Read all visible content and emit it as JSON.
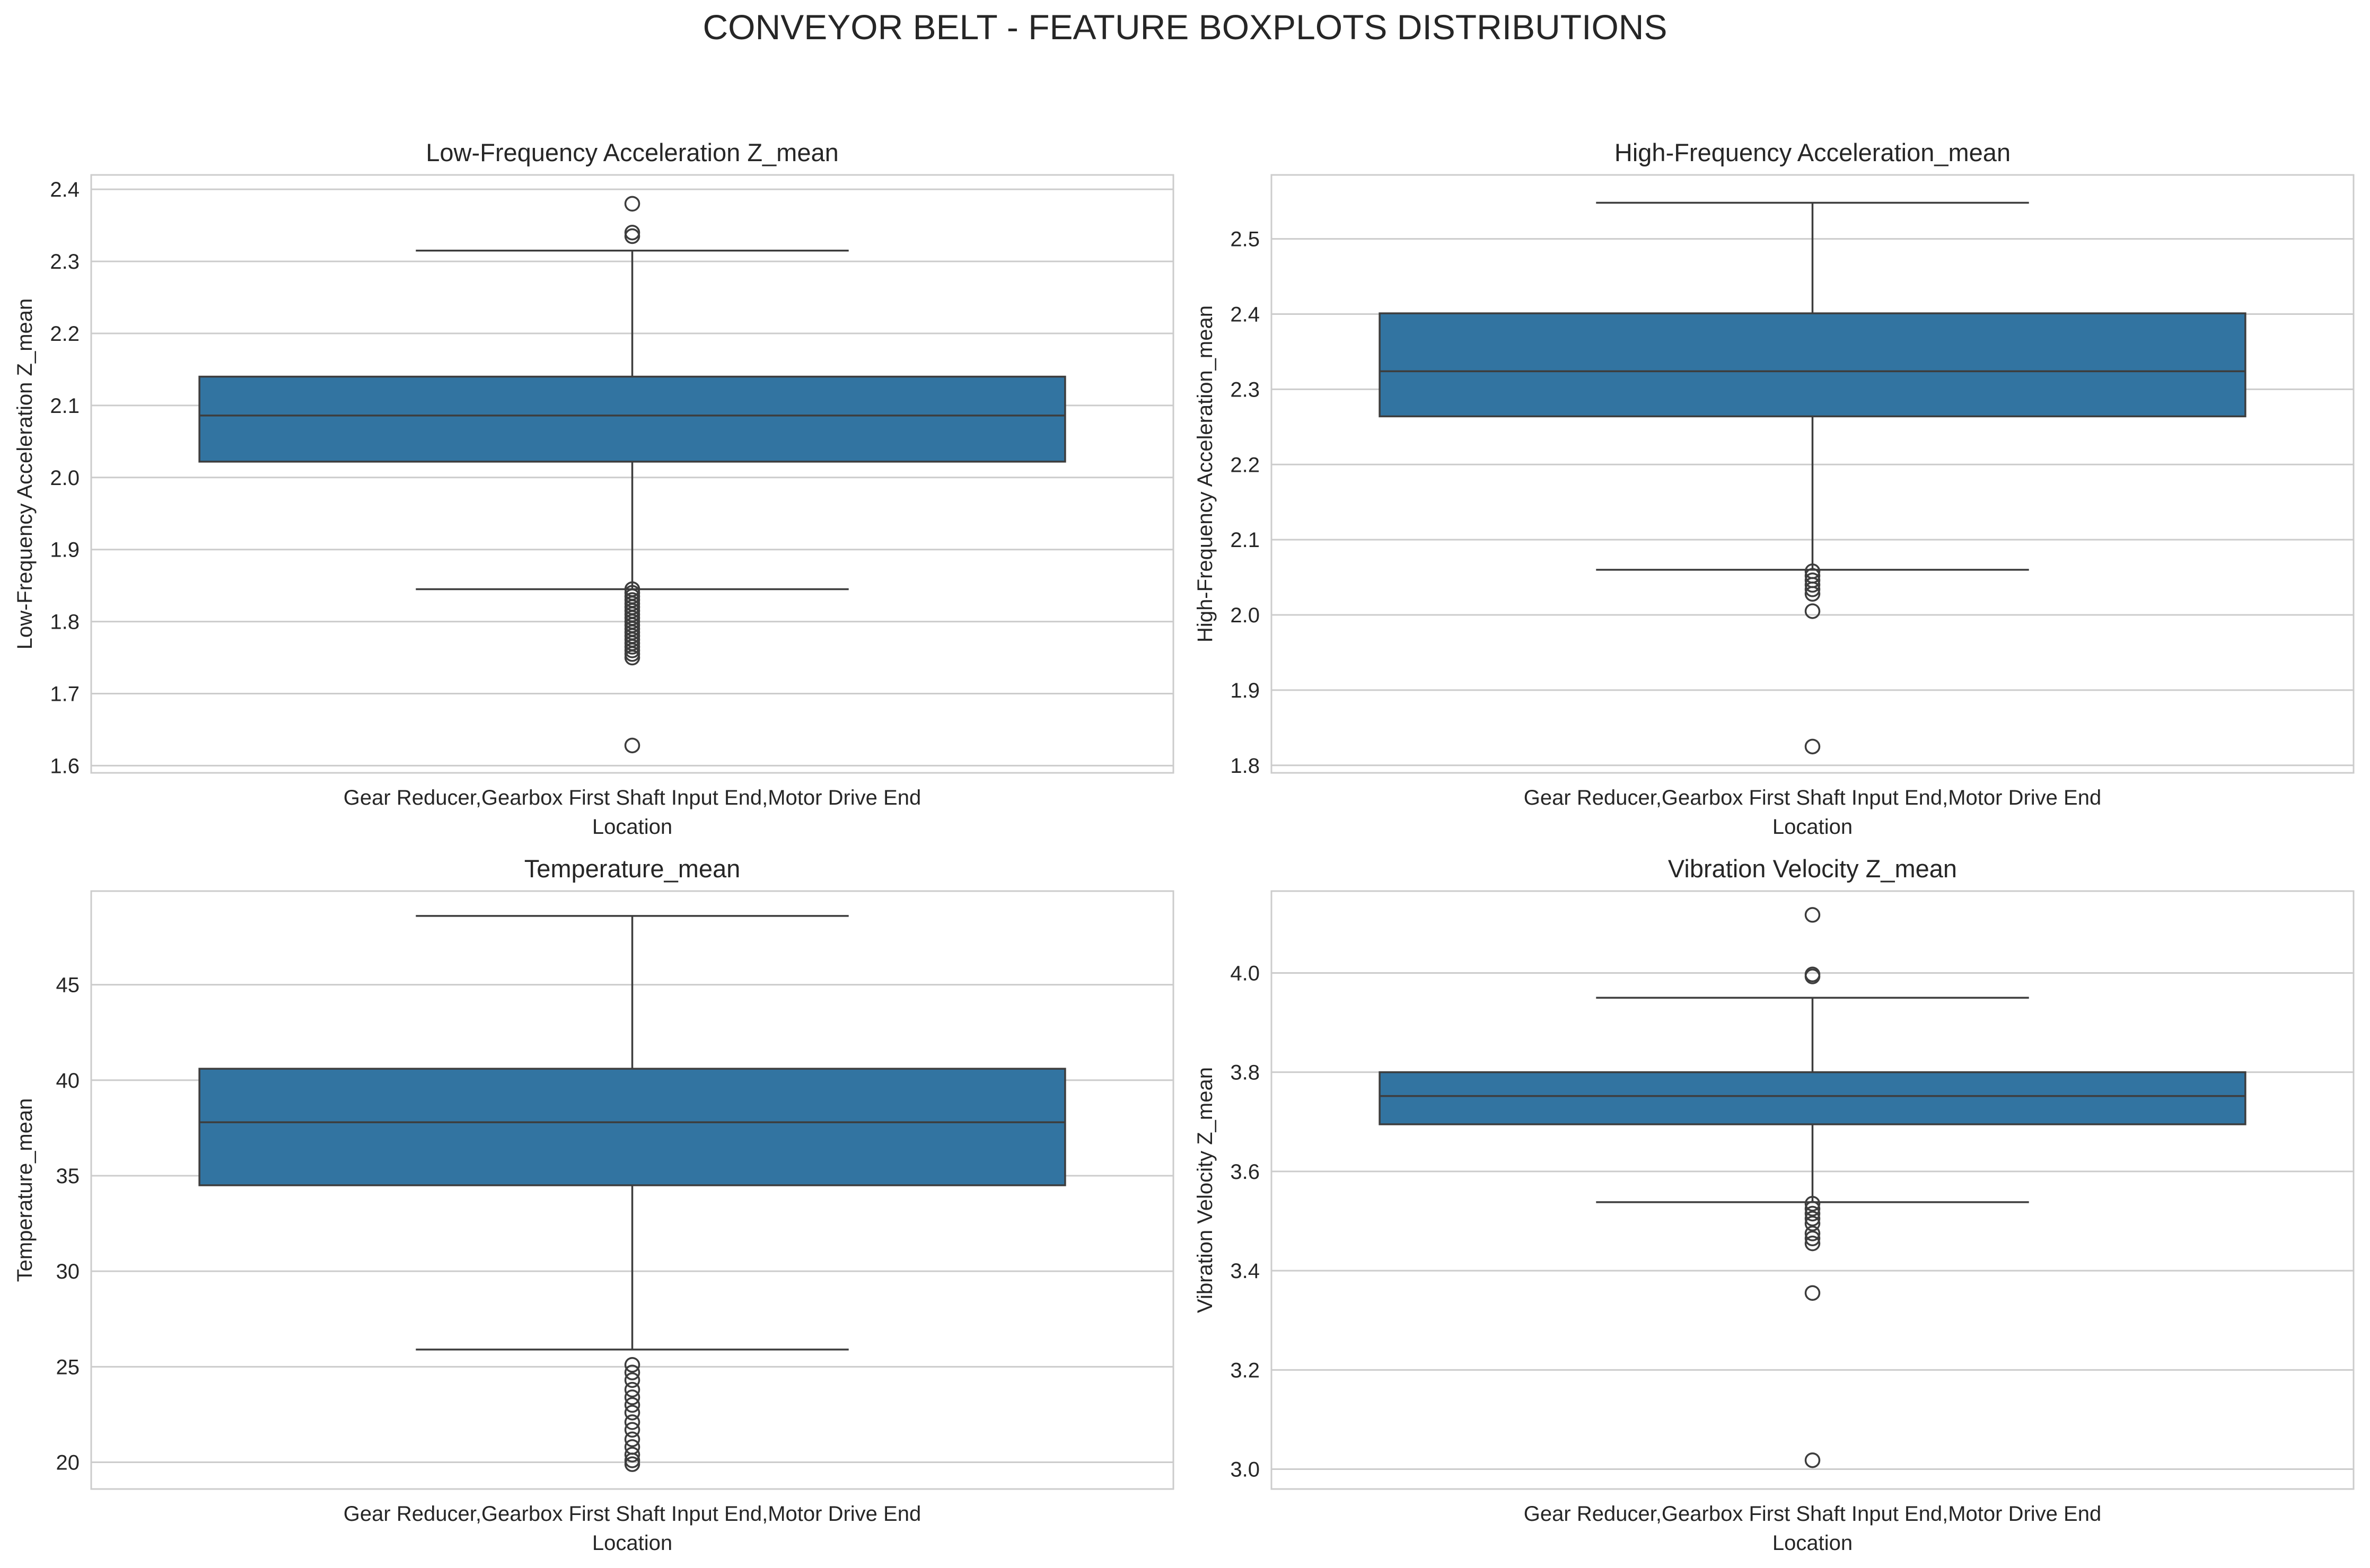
{
  "figure": {
    "suptitle": "CONVEYOR BELT - FEATURE BOXPLOTS DISTRIBUTIONS"
  },
  "colors": {
    "box_fill": "#3274a1",
    "line": "#3d3d3d",
    "grid": "#cccccc",
    "spine": "#cccccc",
    "text": "#262626"
  },
  "chart_data": [
    {
      "type": "boxplot",
      "title": "Low-Frequency Acceleration Z_mean",
      "xlabel": "Location",
      "ylabel": "Low-Frequency Acceleration Z_mean",
      "categories": [
        "Gear Reducer,Gearbox First Shaft Input End,Motor Drive End"
      ],
      "ylim": [
        1.59,
        2.42
      ],
      "yticks": [
        1.6,
        1.7,
        1.8,
        1.9,
        2.0,
        2.1,
        2.2,
        2.3,
        2.4
      ],
      "ytick_labels": [
        "1.6",
        "1.7",
        "1.8",
        "1.9",
        "2.0",
        "2.1",
        "2.2",
        "2.3",
        "2.4"
      ],
      "grid": "y",
      "box": {
        "whisker_low": 1.845,
        "q1": 2.022,
        "median": 2.086,
        "q3": 2.14,
        "whisker_high": 2.315
      },
      "outliers": [
        2.38,
        2.34,
        2.335,
        1.845,
        1.84,
        1.835,
        1.83,
        1.825,
        1.82,
        1.815,
        1.81,
        1.805,
        1.8,
        1.795,
        1.79,
        1.785,
        1.78,
        1.775,
        1.77,
        1.765,
        1.76,
        1.755,
        1.75,
        1.628
      ]
    },
    {
      "type": "boxplot",
      "title": "High-Frequency Acceleration_mean",
      "xlabel": "Location",
      "ylabel": "High-Frequency Acceleration_mean",
      "categories": [
        "Gear Reducer,Gearbox First Shaft Input End,Motor Drive End"
      ],
      "ylim": [
        1.79,
        2.585
      ],
      "yticks": [
        1.8,
        1.9,
        2.0,
        2.1,
        2.2,
        2.3,
        2.4,
        2.5
      ],
      "ytick_labels": [
        "1.8",
        "1.9",
        "2.0",
        "2.1",
        "2.2",
        "2.3",
        "2.4",
        "2.5"
      ],
      "grid": "y",
      "box": {
        "whisker_low": 2.06,
        "q1": 2.264,
        "median": 2.324,
        "q3": 2.401,
        "whisker_high": 2.548
      },
      "outliers": [
        2.058,
        2.052,
        2.046,
        2.04,
        2.034,
        2.028,
        2.005,
        1.825
      ]
    },
    {
      "type": "boxplot",
      "title": "Temperature_mean",
      "xlabel": "Location",
      "ylabel": "Temperature_mean",
      "categories": [
        "Gear Reducer,Gearbox First Shaft Input End,Motor Drive End"
      ],
      "ylim": [
        18.6,
        49.9
      ],
      "yticks": [
        20,
        25,
        30,
        35,
        40,
        45
      ],
      "ytick_labels": [
        "20",
        "25",
        "30",
        "35",
        "40",
        "45"
      ],
      "grid": "y",
      "box": {
        "whisker_low": 25.9,
        "q1": 34.5,
        "median": 37.8,
        "q3": 40.6,
        "whisker_high": 48.6
      },
      "outliers": [
        25.1,
        24.7,
        24.3,
        23.8,
        23.4,
        23.0,
        22.6,
        22.1,
        21.7,
        21.2,
        20.8,
        20.4,
        20.1,
        19.9
      ]
    },
    {
      "type": "boxplot",
      "title": "Vibration Velocity Z_mean",
      "xlabel": "Location",
      "ylabel": "Vibration Velocity Z_mean",
      "categories": [
        "Gear Reducer,Gearbox First Shaft Input End,Motor Drive End"
      ],
      "ylim": [
        2.96,
        4.165
      ],
      "yticks": [
        3.0,
        3.2,
        3.4,
        3.6,
        3.8,
        4.0
      ],
      "ytick_labels": [
        "3.0",
        "3.2",
        "3.4",
        "3.6",
        "3.8",
        "4.0"
      ],
      "grid": "y",
      "box": {
        "whisker_low": 3.538,
        "q1": 3.695,
        "median": 3.752,
        "q3": 3.8,
        "whisker_high": 3.95
      },
      "outliers": [
        4.117,
        3.997,
        3.993,
        3.535,
        3.525,
        3.515,
        3.505,
        3.495,
        3.475,
        3.465,
        3.455,
        3.355,
        3.018
      ]
    }
  ]
}
